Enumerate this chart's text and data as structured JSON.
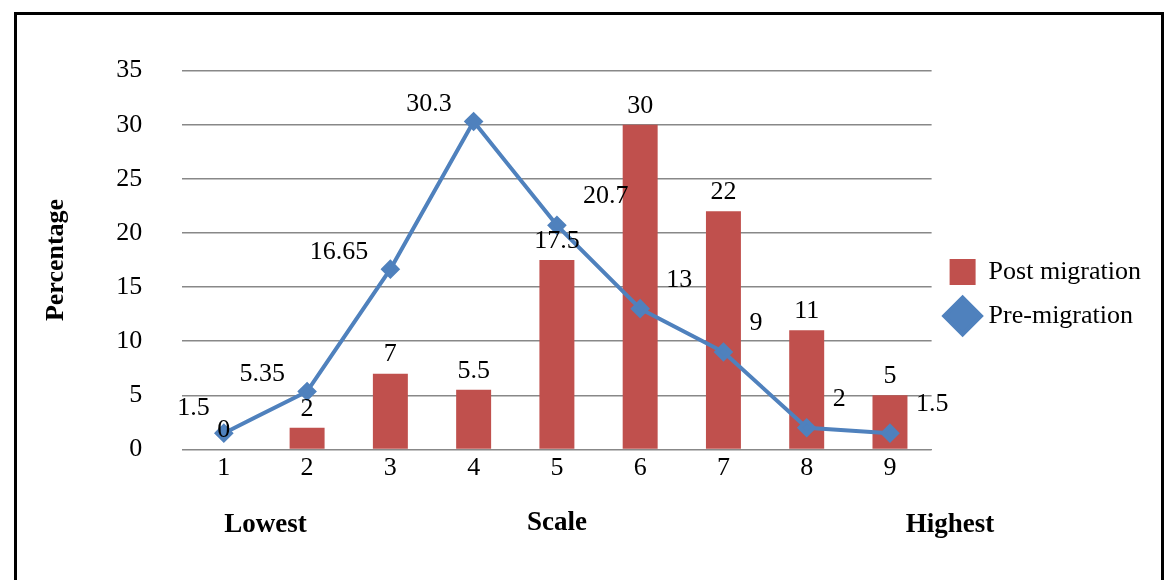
{
  "chart_data": {
    "type": "bar",
    "xlabel": "Scale",
    "ylabel": "Percentage",
    "categories": [
      "1",
      "2",
      "3",
      "4",
      "5",
      "6",
      "7",
      "8",
      "9"
    ],
    "series": [
      {
        "name": "Post migration",
        "color": "#c0504d",
        "values": [
          0,
          2,
          7,
          5.5,
          17.5,
          30,
          22,
          11,
          5
        ]
      },
      {
        "name": "Pre-migration",
        "type": "line",
        "color": "#4f81bd",
        "marker": "diamond",
        "line_style": "solid",
        "values": [
          1.5,
          5.35,
          16.65,
          30.3,
          20.7,
          13,
          9,
          2,
          1.5
        ]
      }
    ],
    "ylim": [
      0,
      35
    ],
    "yticks": [
      0,
      5,
      10,
      15,
      20,
      25,
      30,
      35
    ],
    "grid": "y",
    "legend": "right",
    "data_labels": true,
    "annotations": [
      "Lowest",
      "Highest"
    ]
  }
}
